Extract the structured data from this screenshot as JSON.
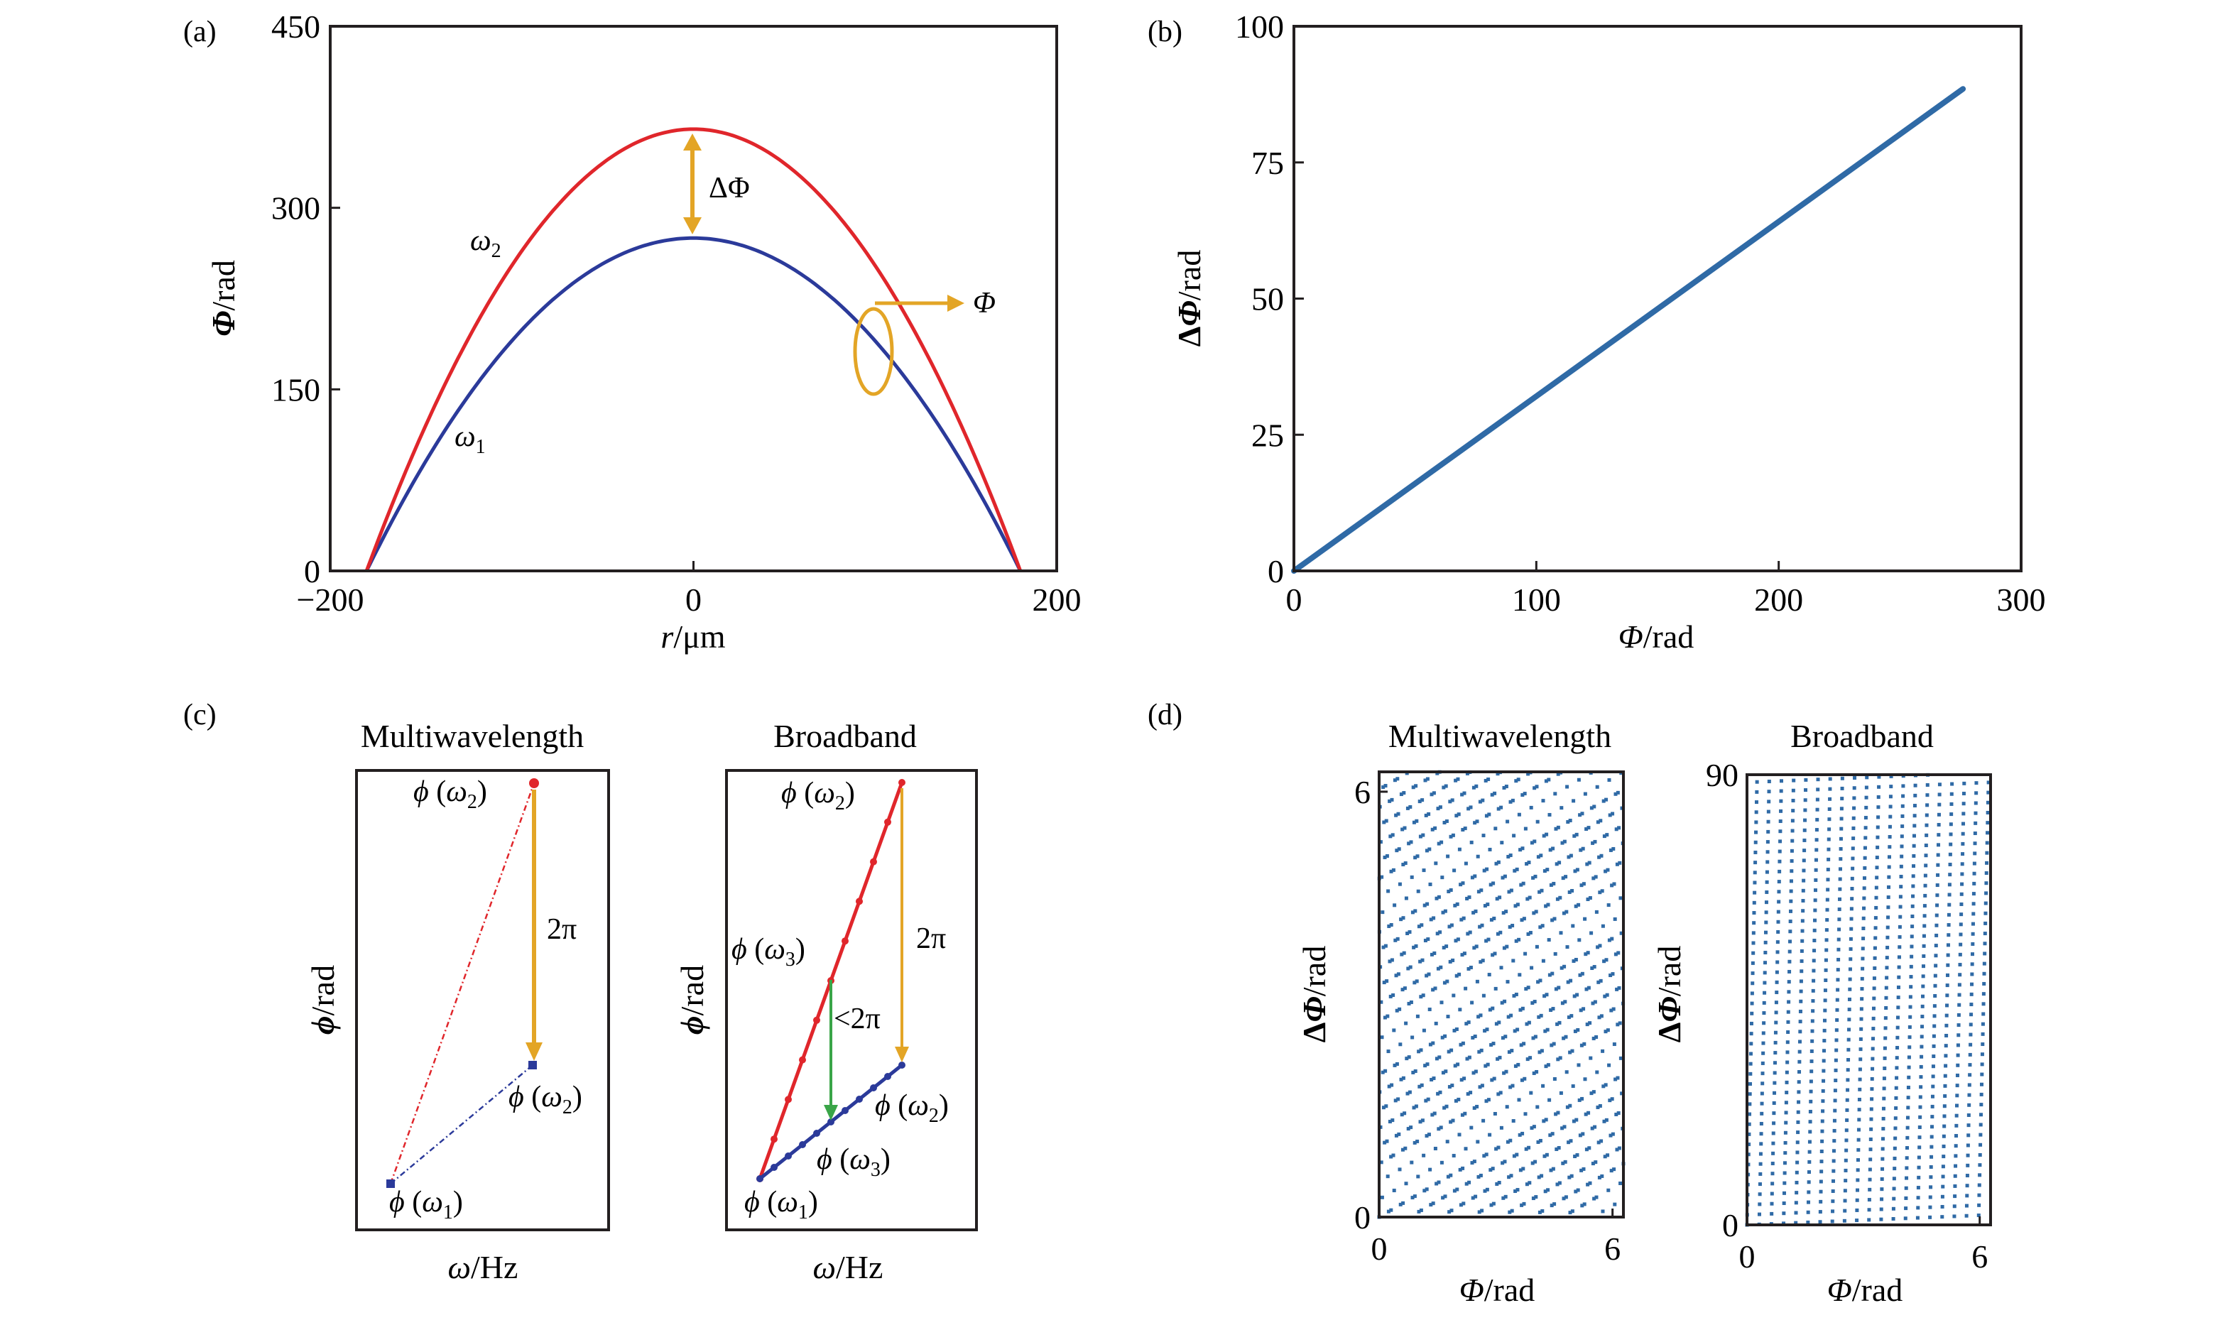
{
  "figure": {
    "colors": {
      "omega1": "#2b3a9a",
      "omega2": "#e0262b",
      "annotation": "#e3a526",
      "green": "#3aa548",
      "scatter": "#2f6aa6",
      "frame": "#231f20"
    }
  },
  "chart_data": [
    {
      "id": "a",
      "panel_label": "(a)",
      "type": "line",
      "title": "",
      "xlabel_italic": "r",
      "xlabel_rest": "/μm",
      "ylabel_italic": "Φ",
      "ylabel_rest": "/rad",
      "xlim": [
        -200,
        200
      ],
      "ylim": [
        0,
        450
      ],
      "xticks": [
        -200,
        0,
        200
      ],
      "xtick_labels": [
        "−200",
        "0",
        "200"
      ],
      "yticks": [
        0,
        150,
        300,
        450
      ],
      "ytick_labels": [
        "0",
        "150",
        "300",
        "450"
      ],
      "grid": false,
      "series": [
        {
          "name": "ω1",
          "label_main": "ω",
          "label_sub": "1",
          "shape": "parabola",
          "zero_at": [
            -180,
            180
          ],
          "peak": [
            0,
            275
          ]
        },
        {
          "name": "ω2",
          "label_main": "ω",
          "label_sub": "2",
          "shape": "parabola",
          "zero_at": [
            -180,
            180
          ],
          "peak": [
            0,
            365
          ]
        }
      ],
      "annotations": {
        "delta_label": "ΔΦ",
        "delta_at_x": 0,
        "phi_label": "Φ",
        "phi_ellipse_center": [
          103,
          175
        ]
      }
    },
    {
      "id": "b",
      "panel_label": "(b)",
      "type": "line",
      "xlabel_italic": "Φ",
      "xlabel_rest": "/rad",
      "ylabel_prefix": "Δ",
      "ylabel_italic": "Φ",
      "ylabel_rest": "/rad",
      "xlim": [
        0,
        300
      ],
      "ylim": [
        0,
        100
      ],
      "xticks": [
        0,
        100,
        200,
        300
      ],
      "xtick_labels": [
        "0",
        "100",
        "200",
        "300"
      ],
      "yticks": [
        0,
        25,
        50,
        75,
        100
      ],
      "ytick_labels": [
        "0",
        "25",
        "50",
        "75",
        "100"
      ],
      "grid": false,
      "series": [
        {
          "name": "ΔΦ vs Φ",
          "x": [
            0,
            276
          ],
          "y": [
            0,
            88.5
          ]
        }
      ]
    },
    {
      "id": "c1",
      "panel_label": "(c)",
      "type": "line",
      "title": "Multiwavelength",
      "xlabel_italic": "ω",
      "xlabel_rest": "/Hz",
      "ylabel_italic": "ϕ",
      "ylabel_rest": "/rad",
      "axes_ticks": false,
      "series": [
        {
          "name": "ω2 branch",
          "style": "dashed",
          "color_key": "omega2",
          "points": [
            [
              0,
              0
            ],
            [
              1,
              1
            ]
          ]
        },
        {
          "name": "ω1 branch",
          "style": "dashed",
          "color_key": "omega1",
          "points": [
            [
              0,
              0
            ],
            [
              1,
              0.29
            ]
          ]
        }
      ],
      "labels": {
        "top": {
          "phi": "ϕ",
          "omega": "ω",
          "sub": "2"
        },
        "right": {
          "phi": "ϕ",
          "omega": "ω",
          "sub": "2"
        },
        "bottom": {
          "phi": "ϕ",
          "omega": "ω",
          "sub": "1"
        },
        "arrow_label": "2π"
      }
    },
    {
      "id": "c2",
      "type": "line",
      "title": "Broadband",
      "xlabel_italic": "ω",
      "xlabel_rest": "/Hz",
      "ylabel_italic": "ϕ",
      "ylabel_rest": "/rad",
      "axes_ticks": false,
      "series": [
        {
          "name": "ω2 branch",
          "style": "solid-markers",
          "color_key": "omega2",
          "n_markers": 10,
          "points": [
            [
              0,
              0
            ],
            [
              1,
              1
            ]
          ]
        },
        {
          "name": "ω1 branch",
          "style": "solid-markers",
          "color_key": "omega1",
          "n_markers": 10,
          "points": [
            [
              0,
              0
            ],
            [
              1,
              0.29
            ]
          ]
        }
      ],
      "labels": {
        "top": {
          "phi": "ϕ",
          "omega": "ω",
          "sub": "2"
        },
        "mid": {
          "phi": "ϕ",
          "omega": "ω",
          "sub": "3"
        },
        "right": {
          "phi": "ϕ",
          "omega": "ω",
          "sub": "2"
        },
        "low": {
          "phi": "ϕ",
          "omega": "ω",
          "sub": "3"
        },
        "bottom": {
          "phi": "ϕ",
          "omega": "ω",
          "sub": "1"
        },
        "arrow_label": "2π",
        "green_label": "<2π"
      }
    },
    {
      "id": "d1",
      "panel_label": "(d)",
      "type": "scatter",
      "title": "Multiwavelength",
      "xlabel_italic": "Φ",
      "xlabel_rest": "/rad",
      "ylabel_prefix": "Δ",
      "ylabel_italic": "Φ",
      "ylabel_rest": "/rad",
      "xlim": [
        0,
        6.28
      ],
      "ylim": [
        0,
        6.28
      ],
      "xticks": [
        0,
        6
      ],
      "xtick_labels": [
        "0",
        "6"
      ],
      "yticks": [
        0,
        6
      ],
      "ytick_labels": [
        "0",
        "6"
      ],
      "minor_ticks": [
        2,
        4
      ],
      "relation": "wrapped(ΔΦ) vs wrapped(Φ), ΔΦ ≈ 0.32·Φ, both wrapped to [0, 2π)",
      "slope": 0.32,
      "wrap_x": 6.283,
      "wrap_y": 6.283,
      "phi_max": 276,
      "n_points": 900
    },
    {
      "id": "d2",
      "type": "scatter",
      "title": "Broadband",
      "xlabel_italic": "Φ",
      "xlabel_rest": "/rad",
      "ylabel_prefix": "Δ",
      "ylabel_italic": "Φ",
      "ylabel_rest": "/rad",
      "xlim": [
        0,
        6.28
      ],
      "ylim": [
        0,
        90
      ],
      "xticks": [
        0,
        6
      ],
      "xtick_labels": [
        "0",
        "6"
      ],
      "yticks": [
        0,
        90
      ],
      "ytick_labels": [
        "0",
        "90"
      ],
      "minor_ticks_x": [
        2,
        4
      ],
      "minor_ticks_y": [
        30,
        60
      ],
      "relation": "unwrapped ΔΦ vs wrapped(Φ), ΔΦ ≈ 0.32·Φ, Φ wrapped to [0, 2π)",
      "slope": 0.32,
      "wrap_x": 6.283,
      "phi_max": 283,
      "n_points": 900
    }
  ]
}
